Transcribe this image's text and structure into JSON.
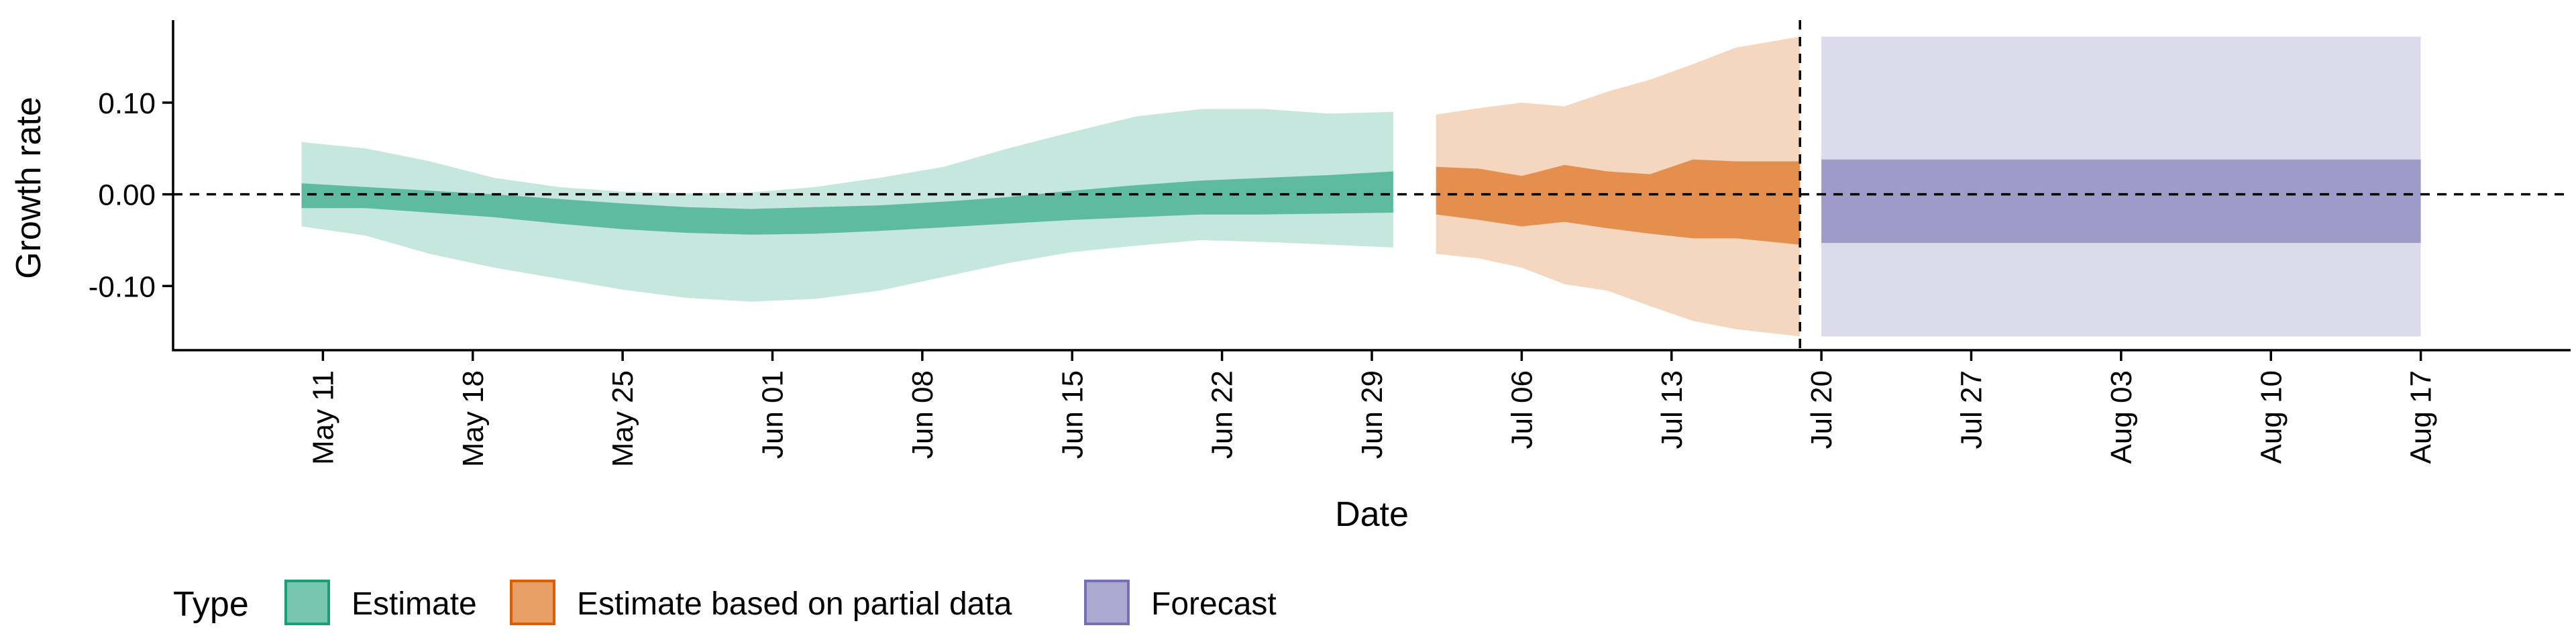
{
  "chart_data": {
    "type": "area",
    "xlabel": "Date",
    "ylabel": "Growth rate",
    "xlim": [
      "2021-05-04",
      "2021-08-24"
    ],
    "ylim": [
      -0.17,
      0.19
    ],
    "y_ticks": [
      -0.1,
      0.0,
      0.1
    ],
    "y_tick_labels": [
      "-0.10",
      "0.00",
      "0.10"
    ],
    "x_ticks": [
      "2021-05-11",
      "2021-05-18",
      "2021-05-25",
      "2021-06-01",
      "2021-06-08",
      "2021-06-15",
      "2021-06-22",
      "2021-06-29",
      "2021-07-06",
      "2021-07-13",
      "2021-07-20",
      "2021-07-27",
      "2021-08-03",
      "2021-08-10",
      "2021-08-17"
    ],
    "x_tick_labels": [
      "May 11",
      "May 18",
      "May 25",
      "Jun 01",
      "Jun 08",
      "Jun 15",
      "Jun 22",
      "Jun 29",
      "Jul 06",
      "Jul 13",
      "Jul 20",
      "Jul 27",
      "Aug 03",
      "Aug 10",
      "Aug 17"
    ],
    "reference_lines": {
      "horizontal_y": 0.0,
      "vertical_x": "2021-07-19"
    },
    "legend": {
      "title": "Type",
      "position": "bottom-left",
      "entries": [
        "Estimate",
        "Estimate based on partial data",
        "Forecast"
      ]
    },
    "series": [
      {
        "name": "Estimate",
        "fill_color": "#1b9e77",
        "x": [
          "2021-05-10",
          "2021-05-13",
          "2021-05-16",
          "2021-05-19",
          "2021-05-22",
          "2021-05-25",
          "2021-05-28",
          "2021-05-31",
          "2021-06-03",
          "2021-06-06",
          "2021-06-09",
          "2021-06-12",
          "2021-06-15",
          "2021-06-18",
          "2021-06-21",
          "2021-06-24",
          "2021-06-27",
          "2021-06-30"
        ],
        "inner_lower": [
          -0.015,
          -0.015,
          -0.02,
          -0.025,
          -0.032,
          -0.038,
          -0.042,
          -0.044,
          -0.043,
          -0.04,
          -0.036,
          -0.032,
          -0.028,
          -0.025,
          -0.022,
          -0.022,
          -0.021,
          -0.02
        ],
        "inner_upper": [
          0.012,
          0.008,
          0.004,
          0.0,
          -0.005,
          -0.01,
          -0.014,
          -0.016,
          -0.014,
          -0.012,
          -0.008,
          -0.003,
          0.004,
          0.01,
          0.015,
          0.018,
          0.021,
          0.025
        ],
        "outer_lower": [
          -0.035,
          -0.045,
          -0.065,
          -0.08,
          -0.092,
          -0.104,
          -0.113,
          -0.117,
          -0.114,
          -0.105,
          -0.09,
          -0.075,
          -0.063,
          -0.056,
          -0.05,
          -0.052,
          -0.055,
          -0.058
        ],
        "outer_upper": [
          0.057,
          0.05,
          0.036,
          0.018,
          0.008,
          0.003,
          0.001,
          0.002,
          0.008,
          0.018,
          0.03,
          0.05,
          0.068,
          0.085,
          0.093,
          0.093,
          0.088,
          0.09
        ]
      },
      {
        "name": "Estimate based on partial data",
        "fill_color": "#d95f02",
        "x": [
          "2021-07-02",
          "2021-07-04",
          "2021-07-06",
          "2021-07-08",
          "2021-07-10",
          "2021-07-12",
          "2021-07-14",
          "2021-07-16",
          "2021-07-19"
        ],
        "inner_lower": [
          -0.022,
          -0.028,
          -0.035,
          -0.03,
          -0.037,
          -0.043,
          -0.048,
          -0.048,
          -0.055
        ],
        "inner_upper": [
          0.03,
          0.028,
          0.02,
          0.032,
          0.025,
          0.022,
          0.038,
          0.036,
          0.036
        ],
        "outer_lower": [
          -0.065,
          -0.07,
          -0.08,
          -0.098,
          -0.105,
          -0.122,
          -0.138,
          -0.147,
          -0.155
        ],
        "outer_upper": [
          0.087,
          0.094,
          0.1,
          0.096,
          0.112,
          0.125,
          0.142,
          0.16,
          0.172
        ]
      },
      {
        "name": "Forecast",
        "fill_color": "#7570b3",
        "x": [
          "2021-07-20",
          "2021-08-17"
        ],
        "inner_lower": [
          -0.053,
          -0.053
        ],
        "inner_upper": [
          0.038,
          0.038
        ],
        "outer_lower": [
          -0.155,
          -0.155
        ],
        "outer_upper": [
          0.172,
          0.172
        ]
      }
    ]
  }
}
